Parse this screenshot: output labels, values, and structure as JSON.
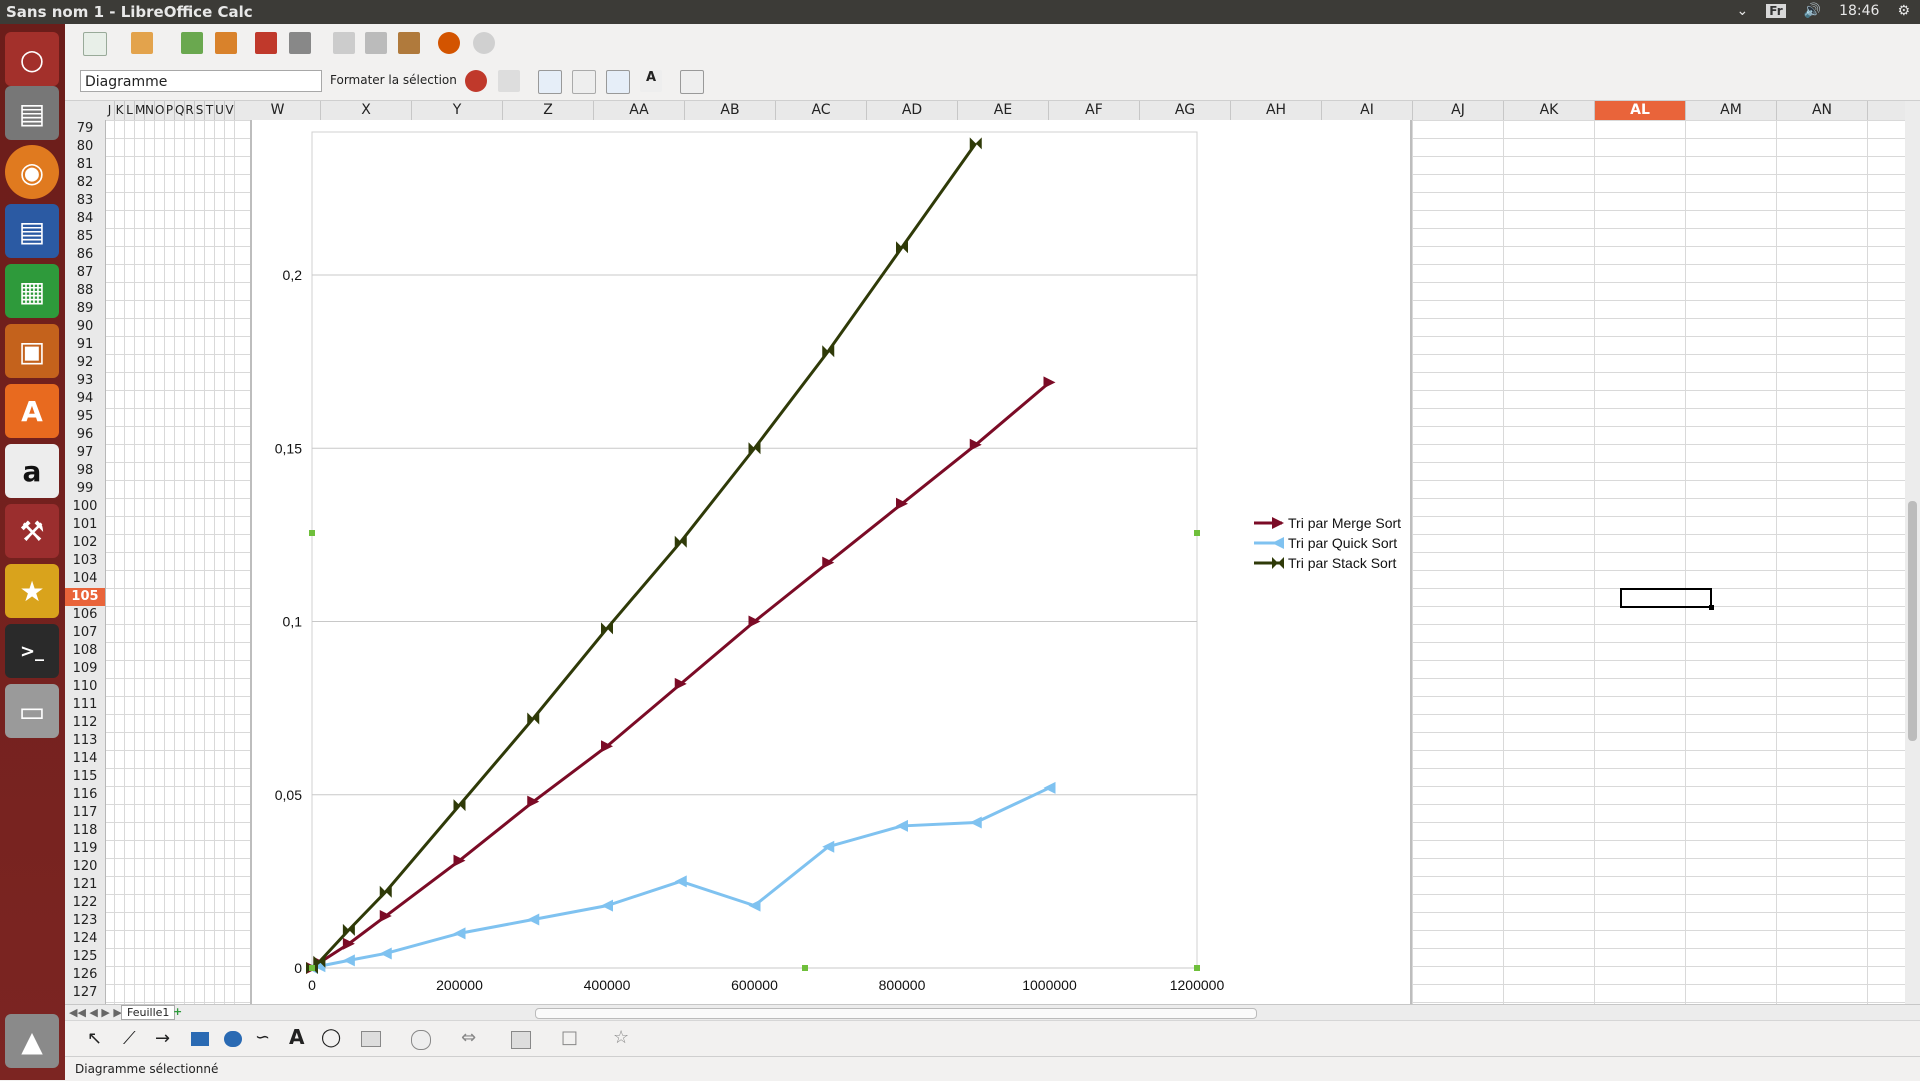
{
  "window": {
    "title": "Sans nom 1 - LibreOffice Calc",
    "keyboard": "Fr",
    "clock": "18:46"
  },
  "launcher": {
    "items": [
      "ubuntu-dash-icon",
      "files-icon",
      "firefox-icon",
      "writer-icon",
      "calc-icon",
      "impress-icon",
      "software-center-icon",
      "amazon-icon",
      "settings-icon",
      "game-icon",
      "terminal-icon",
      "disk-icon",
      "trash-icon"
    ]
  },
  "toolbar": {
    "object_select": "Diagramme",
    "format_selection": "Formater la sélection"
  },
  "columns": [
    {
      "label": "J"
    },
    {
      "label": "K"
    },
    {
      "label": "L"
    },
    {
      "label": "M"
    },
    {
      "label": "N"
    },
    {
      "label": "O"
    },
    {
      "label": "P"
    },
    {
      "label": "Q"
    },
    {
      "label": "R"
    },
    {
      "label": "S"
    },
    {
      "label": "T"
    },
    {
      "label": "U"
    },
    {
      "label": "V"
    },
    {
      "label": "W"
    },
    {
      "label": "X"
    },
    {
      "label": "Y"
    },
    {
      "label": "Z"
    },
    {
      "label": "AA"
    },
    {
      "label": "AB"
    },
    {
      "label": "AC"
    },
    {
      "label": "AD"
    },
    {
      "label": "AE"
    },
    {
      "label": "AF"
    },
    {
      "label": "AG"
    },
    {
      "label": "AH"
    },
    {
      "label": "AI"
    },
    {
      "label": "AJ"
    },
    {
      "label": "AK"
    },
    {
      "label": "AL",
      "selected": true
    },
    {
      "label": "AM"
    },
    {
      "label": "AN"
    }
  ],
  "rows": [
    "79",
    "80",
    "81",
    "82",
    "83",
    "84",
    "85",
    "86",
    "87",
    "88",
    "89",
    "90",
    "91",
    "92",
    "93",
    "94",
    "95",
    "96",
    "97",
    "98",
    "99",
    "100",
    "101",
    "102",
    "103",
    "104",
    "105",
    "106",
    "107",
    "108",
    "109",
    "110",
    "111",
    "112",
    "113",
    "114",
    "115",
    "116",
    "117",
    "118",
    "119",
    "120",
    "121",
    "122",
    "123",
    "124",
    "125",
    "126",
    "127"
  ],
  "selected_row": "105",
  "sheet_tab": "Feuille1",
  "status": "Diagramme sélectionné",
  "chart_data": {
    "type": "line",
    "title": "",
    "xlabel": "",
    "ylabel": "",
    "xlim": [
      0,
      1200000
    ],
    "ylim": [
      0,
      0.2
    ],
    "x_ticks": [
      "0",
      "200000",
      "400000",
      "600000",
      "800000",
      "1000000",
      "1200000"
    ],
    "y_ticks": [
      "0",
      "0,05",
      "0,1",
      "0,15",
      "0,2"
    ],
    "grid": true,
    "legend": "right",
    "series": [
      {
        "name": "Tri par Merge Sort",
        "color": "#7b0b26",
        "marker": "right-triangle",
        "x": [
          0,
          10000,
          50000,
          100000,
          200000,
          300000,
          400000,
          500000,
          600000,
          700000,
          800000,
          900000,
          1000000
        ],
        "y": [
          0,
          0.0015,
          0.007,
          0.015,
          0.031,
          0.048,
          0.064,
          0.082,
          0.1,
          0.117,
          0.134,
          0.151,
          0.169
        ]
      },
      {
        "name": "Tri par Quick Sort",
        "color": "#7fc2f0",
        "marker": "left-triangle",
        "x": [
          0,
          10000,
          50000,
          100000,
          200000,
          300000,
          400000,
          500000,
          600000,
          700000,
          800000,
          900000,
          1000000
        ],
        "y": [
          0,
          0.0005,
          0.0022,
          0.0042,
          0.01,
          0.014,
          0.018,
          0.025,
          0.018,
          0.035,
          0.041,
          0.042,
          0.052
        ]
      },
      {
        "name": "Tri par Stack Sort",
        "color": "#2f3a08",
        "marker": "bowtie",
        "x": [
          0,
          10000,
          50000,
          100000,
          200000,
          300000,
          400000,
          500000,
          600000,
          700000,
          800000,
          900000
        ],
        "y": [
          0,
          0.0018,
          0.011,
          0.022,
          0.047,
          0.072,
          0.098,
          0.123,
          0.15,
          0.178,
          0.208,
          0.238
        ]
      }
    ]
  },
  "colors": {
    "launcher": "#7a2420",
    "topbar": "#3c3b37",
    "selection": "#e9643a"
  }
}
